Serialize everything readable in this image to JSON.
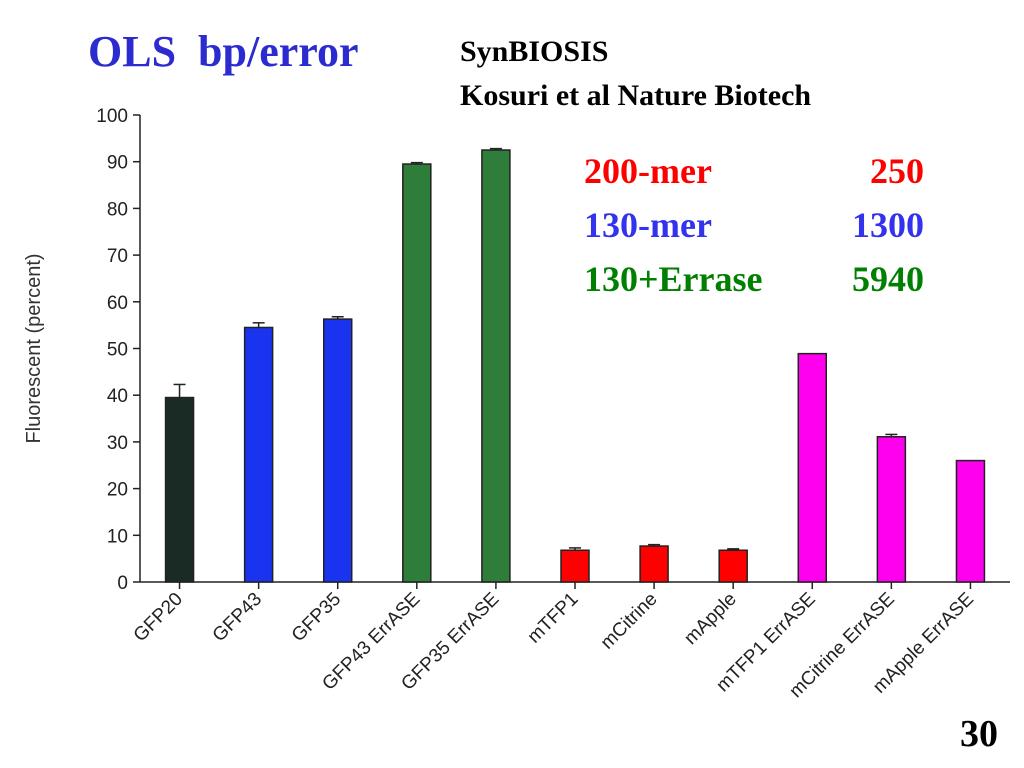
{
  "slide": {
    "title": "OLS  bp/error",
    "source_line1": "SynBIOSIS",
    "source_line2": "Kosuri et al Nature Biotech",
    "page_number": "30"
  },
  "stats": [
    {
      "label": "200-mer",
      "value": "250",
      "color": "#ff0000"
    },
    {
      "label": "130-mer",
      "value": "1300",
      "color": "#3333ee"
    },
    {
      "label": "130+Errase",
      "value": "5940",
      "color": "#008000"
    }
  ],
  "chart_data": {
    "type": "bar",
    "title": "",
    "xlabel": "",
    "ylabel": "Fluorescent (percent)",
    "ylim": [
      0,
      100
    ],
    "yticks": [
      0,
      10,
      20,
      30,
      40,
      50,
      60,
      70,
      80,
      90,
      100
    ],
    "categories": [
      "GFP20",
      "GFP43",
      "GFP35",
      "GFP43 ErrASE",
      "GFP35 ErrASE",
      "mTFP1",
      "mCitrine",
      "mApple",
      "mTFP1 ErrASE",
      "mCitrine ErrASE",
      "mApple ErrASE"
    ],
    "values": [
      39.5,
      54.5,
      56.3,
      89.5,
      92.5,
      6.8,
      7.7,
      6.8,
      48.9,
      31.1,
      26.0
    ],
    "errors": [
      2.8,
      1.0,
      0.5,
      0.3,
      0.3,
      0.5,
      0.3,
      0.3,
      0.0,
      0.5,
      0.0
    ],
    "colors": [
      "#1a2b26",
      "#1a33ee",
      "#1a33ee",
      "#2e7d3a",
      "#2e7d3a",
      "#ff0000",
      "#ff0000",
      "#ff0000",
      "#ff00ee",
      "#ff00ee",
      "#ff00ee"
    ],
    "grid": false,
    "legend": "none"
  }
}
